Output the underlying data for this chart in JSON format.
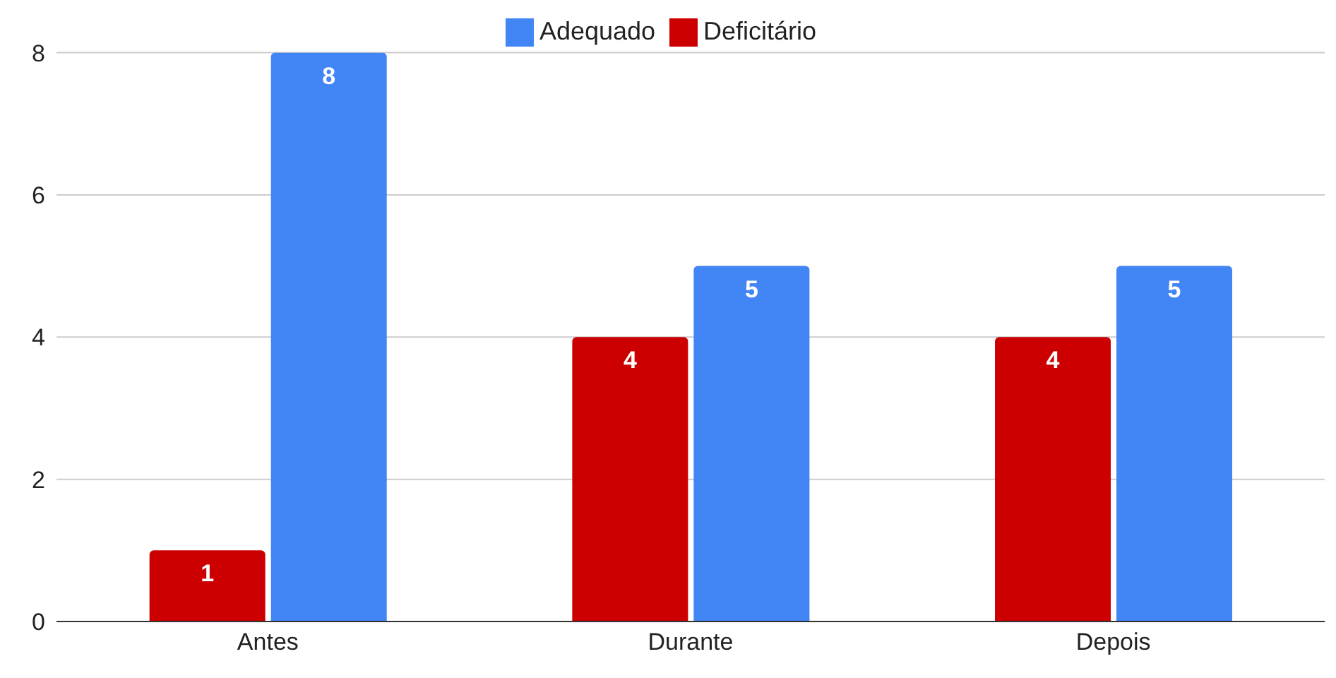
{
  "chart_data": {
    "type": "bar",
    "categories": [
      "Antes",
      "Durante",
      "Depois"
    ],
    "series": [
      {
        "name": "Deficitário",
        "color": "#cc0000",
        "values": [
          1,
          4,
          4
        ]
      },
      {
        "name": "Adequado",
        "color": "#4285f4",
        "values": [
          8,
          5,
          5
        ]
      }
    ],
    "ylim": [
      0,
      8
    ],
    "yticks": [
      0,
      2,
      4,
      6,
      8
    ],
    "grid": "y",
    "legend": "top",
    "data_labels": true
  }
}
